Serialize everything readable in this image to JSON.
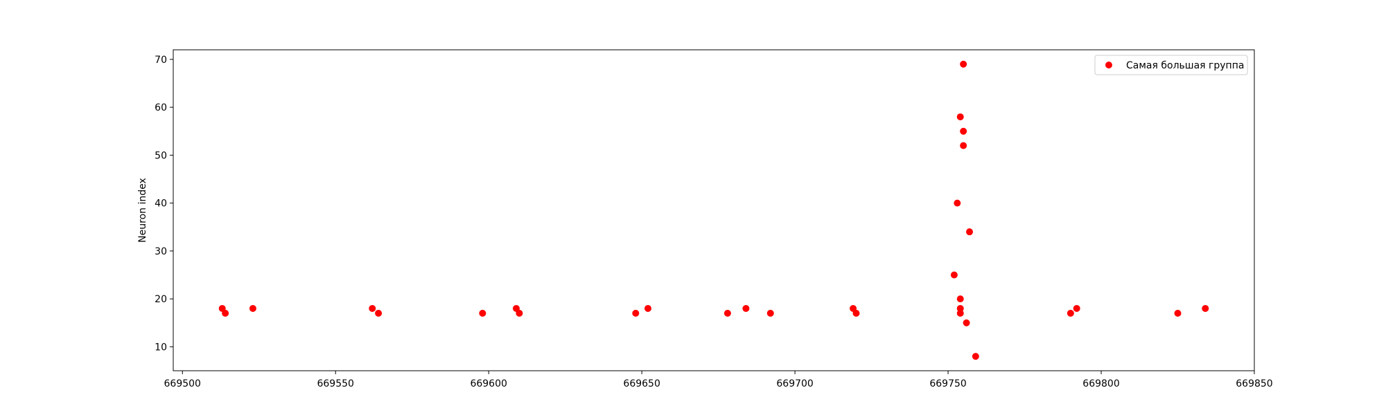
{
  "chart_data": {
    "type": "scatter",
    "title": "",
    "xlabel": "",
    "ylabel": "Neuron index",
    "xlim": [
      669497,
      669850
    ],
    "ylim": [
      5,
      72
    ],
    "xticks": [
      669500,
      669550,
      669600,
      669650,
      669700,
      669750,
      669800,
      669850
    ],
    "xtick_labels": [
      "669500",
      "669550",
      "669600",
      "669650",
      "669700",
      "669750",
      "669800",
      "669850"
    ],
    "yticks": [
      10,
      20,
      30,
      40,
      50,
      60,
      70
    ],
    "ytick_labels": [
      "10",
      "20",
      "30",
      "40",
      "50",
      "60",
      "70"
    ],
    "grid": false,
    "legend": {
      "position": "top-right"
    },
    "series": [
      {
        "name": "Самая большая группа",
        "color": "#ff0000",
        "points": [
          [
            669513,
            18
          ],
          [
            669514,
            17
          ],
          [
            669523,
            18
          ],
          [
            669562,
            18
          ],
          [
            669564,
            17
          ],
          [
            669598,
            17
          ],
          [
            669609,
            18
          ],
          [
            669610,
            17
          ],
          [
            669648,
            17
          ],
          [
            669652,
            18
          ],
          [
            669678,
            17
          ],
          [
            669684,
            18
          ],
          [
            669692,
            17
          ],
          [
            669719,
            18
          ],
          [
            669720,
            17
          ],
          [
            669752,
            25
          ],
          [
            669753,
            40
          ],
          [
            669754,
            58
          ],
          [
            669754,
            20
          ],
          [
            669754,
            18
          ],
          [
            669754,
            17
          ],
          [
            669755,
            52
          ],
          [
            669755,
            55
          ],
          [
            669755,
            69
          ],
          [
            669756,
            15
          ],
          [
            669757,
            34
          ],
          [
            669759,
            8
          ],
          [
            669790,
            17
          ],
          [
            669792,
            18
          ],
          [
            669825,
            17
          ],
          [
            669834,
            18
          ]
        ]
      }
    ]
  }
}
